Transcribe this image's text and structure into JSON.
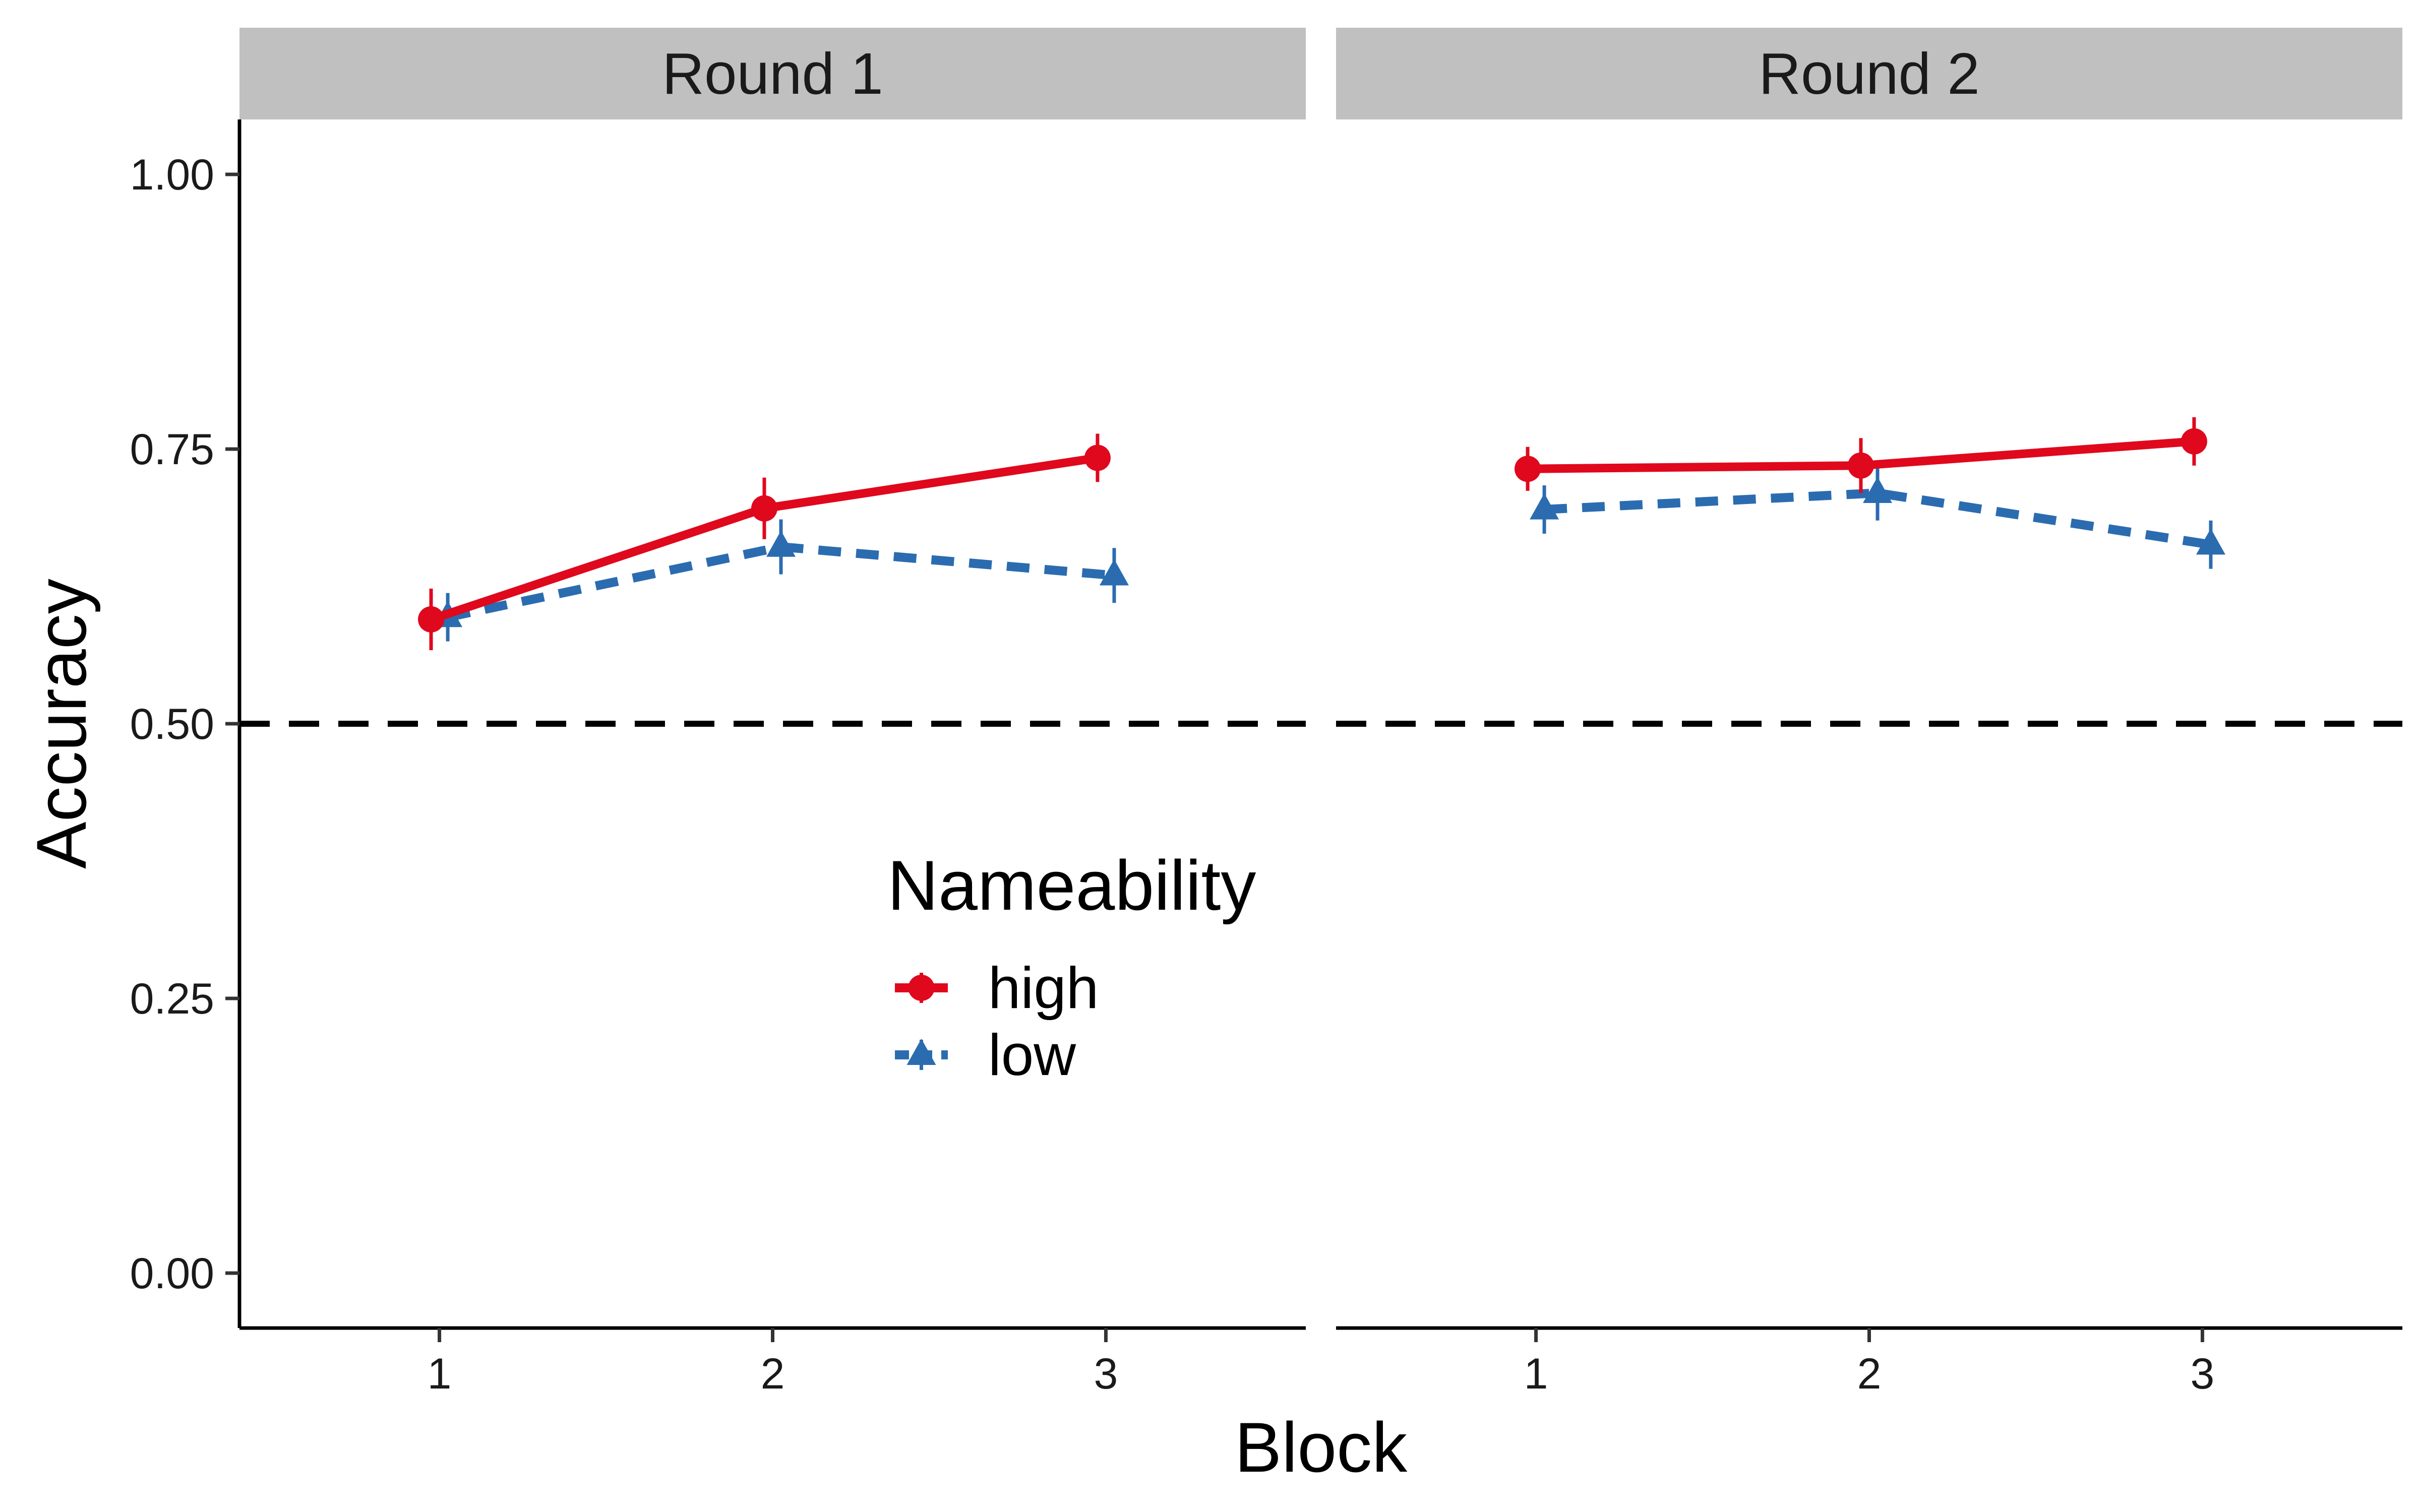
{
  "chart_data": {
    "type": "line",
    "facet_variable": "Round",
    "facets": [
      {
        "label": "Round 1",
        "series": [
          {
            "name": "high",
            "x": [
              1,
              2,
              3
            ],
            "y": [
              0.595,
              0.696,
              0.742
            ],
            "err": [
              0.028,
              0.028,
              0.022
            ]
          },
          {
            "name": "low",
            "x": [
              1,
              2,
              3
            ],
            "y": [
              0.597,
              0.661,
              0.635
            ],
            "err": [
              0.022,
              0.025,
              0.025
            ]
          }
        ]
      },
      {
        "label": "Round 2",
        "series": [
          {
            "name": "high",
            "x": [
              1,
              2,
              3
            ],
            "y": [
              0.732,
              0.735,
              0.757
            ],
            "err": [
              0.02,
              0.025,
              0.022
            ]
          },
          {
            "name": "low",
            "x": [
              1,
              2,
              3
            ],
            "y": [
              0.695,
              0.71,
              0.663
            ],
            "err": [
              0.022,
              0.025,
              0.022
            ]
          }
        ]
      }
    ],
    "xlabel": "Block",
    "ylabel": "Accuracy",
    "x_ticks": [
      "1",
      "2",
      "3"
    ],
    "y_ticks": [
      "0.00",
      "0.25",
      "0.50",
      "0.75",
      "1.00"
    ],
    "ylim": [
      -0.05,
      1.05
    ],
    "xlim": [
      0.4,
      3.6
    ],
    "reference_line": {
      "y": 0.5,
      "style": "dashed",
      "color": "#000000"
    },
    "legend": {
      "title": "Nameability",
      "placement": "inside-bottom-center",
      "entries": [
        {
          "label": "high",
          "color": "#e0081c",
          "marker": "circle",
          "linestyle": "solid"
        },
        {
          "label": "low",
          "color": "#2b6cb0",
          "marker": "triangle",
          "linestyle": "dashed"
        }
      ]
    },
    "colors": {
      "high": "#e0081c",
      "low": "#2b6cb0",
      "strip_background": "#c0c0c0"
    },
    "grid": false
  }
}
